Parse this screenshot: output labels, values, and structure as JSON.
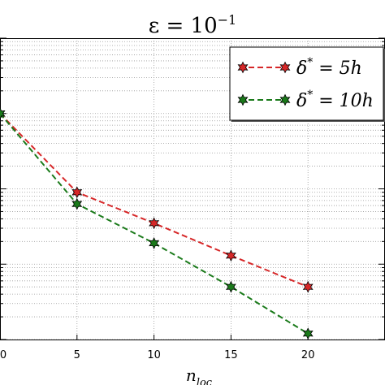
{
  "chart_data": {
    "type": "line",
    "title": "ε = 10⁻¹",
    "title_math": {
      "base": "ε = 10",
      "sup": "−1"
    },
    "xlabel": "n_loc",
    "xlabel_math": {
      "base": "n",
      "sub": "loc"
    },
    "ylabel": "",
    "yscale": "log",
    "xlim": [
      0,
      25
    ],
    "ylim": [
      1e-05,
      0.1
    ],
    "x_ticks": [
      0,
      5,
      10,
      15,
      20
    ],
    "x_tick_labels": [
      "0",
      "5",
      "10",
      "15",
      "20"
    ],
    "grid": true,
    "legend_position": "top-right",
    "x": [
      0,
      5,
      10,
      15,
      20
    ],
    "series": [
      {
        "name": "δ* = 5h",
        "name_math": {
          "base": "δ",
          "sup": "*",
          "rest": " = 5h"
        },
        "color": "#d62728",
        "line": "dashed",
        "marker": "star",
        "values": [
          0.01,
          0.0009,
          0.00035,
          0.00013,
          5e-05
        ]
      },
      {
        "name": "δ* = 10h",
        "name_math": {
          "base": "δ",
          "sup": "*",
          "rest": " = 10h"
        },
        "color": "#1a7a1a",
        "line": "dashed",
        "marker": "star",
        "values": [
          0.01,
          0.00063,
          0.00019,
          5e-05,
          1.2e-05
        ]
      }
    ]
  }
}
